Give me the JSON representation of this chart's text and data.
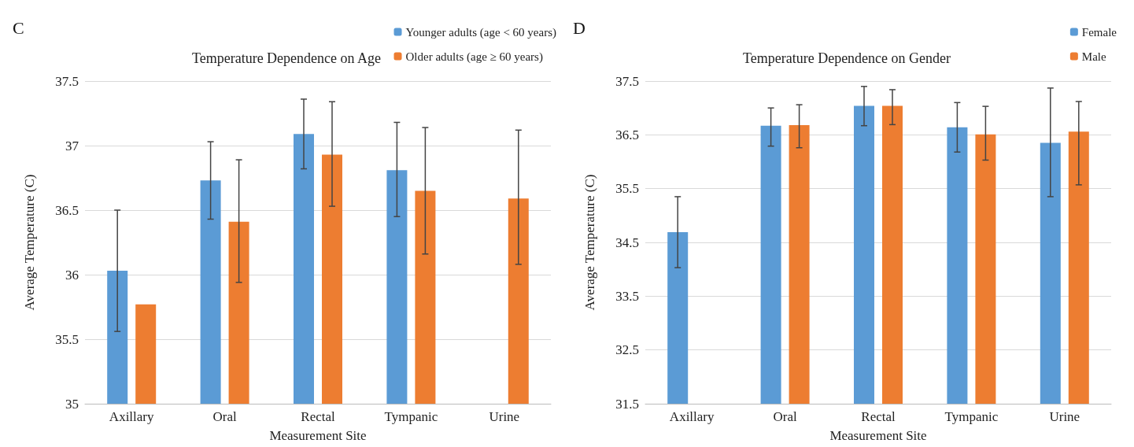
{
  "chart_data": [
    {
      "type": "bar",
      "title": "Temperature Dependence on Age",
      "xlabel": "Measurement Site",
      "ylabel": "Average Temperature (C)",
      "annotations": [
        "C"
      ],
      "categories": [
        "Axillary",
        "Oral",
        "Rectal",
        "Tympanic",
        "Urine"
      ],
      "series": [
        {
          "name": "Younger adults (age < 60 years)",
          "color": "#5b9bd5",
          "values": [
            36.03,
            36.73,
            37.09,
            36.81,
            null
          ],
          "errors": [
            [
              35.56,
              36.5
            ],
            [
              36.43,
              37.03
            ],
            [
              36.82,
              37.36
            ],
            [
              36.45,
              37.18
            ],
            null
          ]
        },
        {
          "name": "Older adults (age ≥ 60 years)",
          "color": "#ed7d31",
          "values": [
            35.77,
            36.41,
            36.93,
            36.65,
            36.59
          ],
          "errors": [
            null,
            [
              35.94,
              36.89
            ],
            [
              36.53,
              37.34
            ],
            [
              36.16,
              37.14
            ],
            [
              36.08,
              37.12
            ]
          ]
        }
      ],
      "ylim": [
        35,
        37.5
      ],
      "yticks": [
        35,
        35.5,
        36,
        36.5,
        37,
        37.5
      ],
      "grid": "y",
      "legend": "top right"
    },
    {
      "type": "bar",
      "title": "Temperature Dependence on Gender",
      "xlabel": "Measurement Site",
      "ylabel": "Average Temperature (C)",
      "annotations": [
        "D"
      ],
      "categories": [
        "Axillary",
        "Oral",
        "Rectal",
        "Tympanic",
        "Urine"
      ],
      "series": [
        {
          "name": "Female",
          "color": "#5b9bd5",
          "values": [
            34.69,
            36.67,
            37.04,
            36.64,
            36.35
          ],
          "errors": [
            [
              34.03,
              35.35
            ],
            [
              36.29,
              37.0
            ],
            [
              36.67,
              37.4
            ],
            [
              36.18,
              37.1
            ],
            [
              35.35,
              37.37
            ]
          ]
        },
        {
          "name": "Male",
          "color": "#ed7d31",
          "values": [
            null,
            36.68,
            37.04,
            36.51,
            36.56
          ],
          "errors": [
            null,
            [
              36.26,
              37.06
            ],
            [
              36.69,
              37.34
            ],
            [
              36.03,
              37.03
            ],
            [
              35.57,
              37.12
            ]
          ]
        }
      ],
      "ylim": [
        31.5,
        37.5
      ],
      "yticks": [
        31.5,
        32.5,
        33.5,
        34.5,
        35.5,
        36.5,
        37.5
      ],
      "grid": "y",
      "legend": "top right"
    }
  ]
}
